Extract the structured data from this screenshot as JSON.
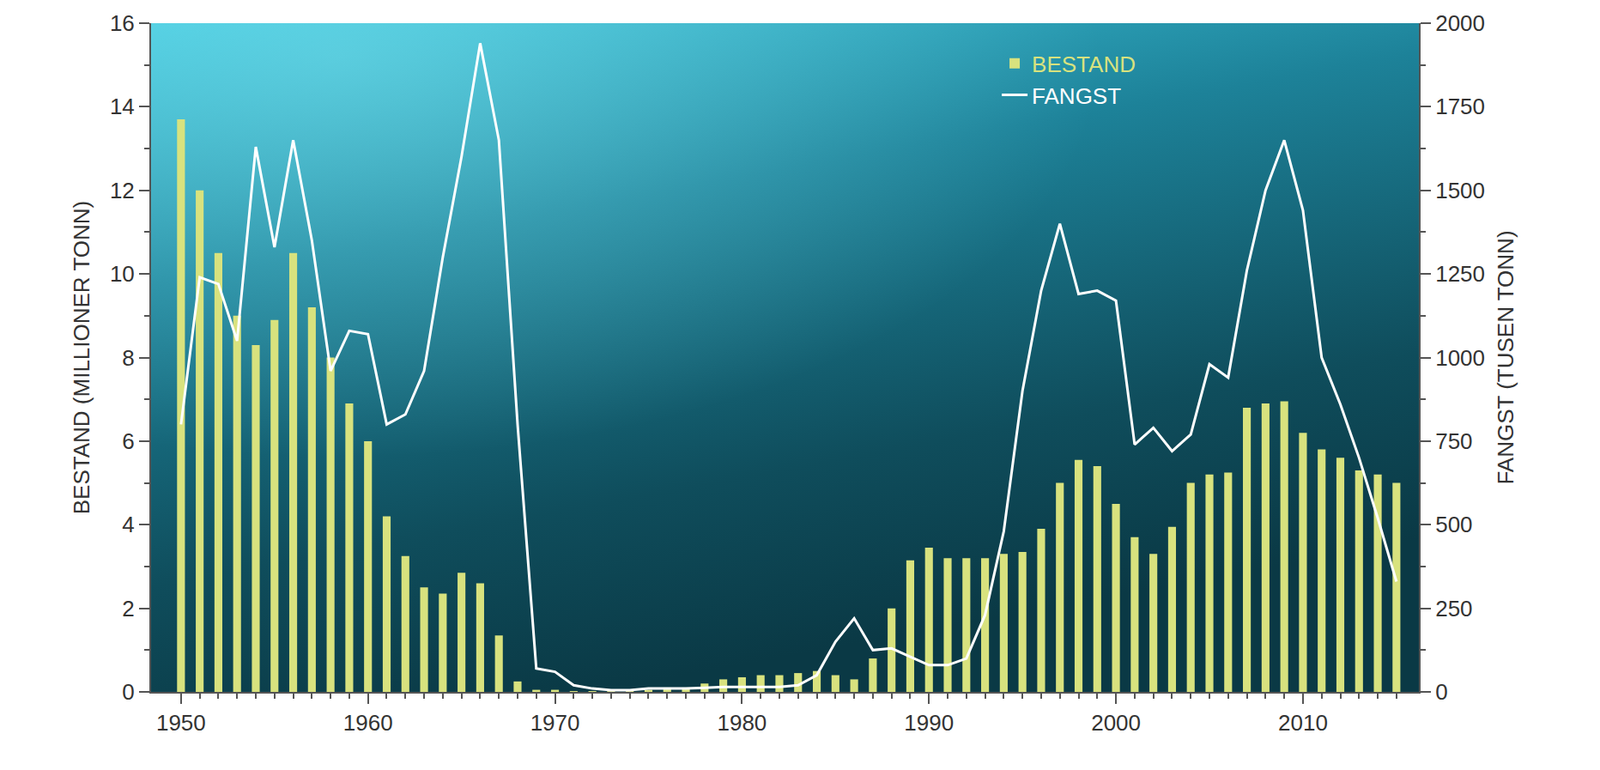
{
  "chart_data": {
    "type": "bar",
    "x": [
      1950,
      1951,
      1952,
      1953,
      1954,
      1955,
      1956,
      1957,
      1958,
      1959,
      1960,
      1961,
      1962,
      1963,
      1964,
      1965,
      1966,
      1967,
      1968,
      1969,
      1970,
      1971,
      1972,
      1973,
      1974,
      1975,
      1976,
      1977,
      1978,
      1979,
      1980,
      1981,
      1982,
      1983,
      1984,
      1985,
      1986,
      1987,
      1988,
      1989,
      1990,
      1991,
      1992,
      1993,
      1994,
      1995,
      1996,
      1997,
      1998,
      1999,
      2000,
      2001,
      2002,
      2003,
      2004,
      2005,
      2006,
      2007,
      2008,
      2009,
      2010,
      2011,
      2012,
      2013,
      2014,
      2015
    ],
    "series": [
      {
        "name": "BESTAND",
        "type": "bar",
        "color": "#d8e27e",
        "axis": "y",
        "values": [
          13.7,
          12.0,
          10.5,
          9.0,
          8.3,
          8.9,
          10.5,
          9.2,
          8.0,
          6.9,
          6.0,
          4.2,
          3.25,
          2.5,
          2.35,
          2.85,
          2.6,
          1.35,
          0.25,
          0.05,
          0.05,
          0.02,
          0.02,
          0.02,
          0.03,
          0.05,
          0.08,
          0.1,
          0.2,
          0.3,
          0.35,
          0.4,
          0.4,
          0.45,
          0.5,
          0.4,
          0.3,
          0.8,
          2.0,
          3.15,
          3.45,
          3.2,
          3.2,
          3.2,
          3.3,
          3.35,
          3.9,
          5.0,
          5.55,
          5.4,
          4.5,
          3.7,
          3.3,
          3.95,
          5.0,
          5.2,
          5.25,
          6.8,
          6.9,
          6.95,
          6.2,
          5.8,
          5.6,
          5.3,
          5.2,
          5.0
        ]
      },
      {
        "name": "FANGST",
        "type": "line",
        "color": "#ffffff",
        "axis": "y2",
        "values": [
          800,
          1240,
          1220,
          1050,
          1630,
          1330,
          1650,
          1350,
          960,
          1080,
          1070,
          800,
          830,
          960,
          1300,
          1600,
          1940,
          1650,
          800,
          70,
          60,
          20,
          10,
          5,
          5,
          10,
          10,
          10,
          12,
          15,
          15,
          15,
          15,
          20,
          50,
          150,
          220,
          125,
          130,
          105,
          80,
          80,
          100,
          230,
          480,
          900,
          1200,
          1400,
          1190,
          1200,
          1170,
          740,
          790,
          720,
          770,
          980,
          940,
          1260,
          1500,
          1650,
          1440,
          1000,
          860,
          700,
          520,
          330
        ]
      }
    ],
    "y_label": "BESTAND (MILLIONER TONN)",
    "y2_label": "FANGST (TUSEN TONN)",
    "xlim": [
      1948.4,
      2016.2
    ],
    "xticks": [
      1950,
      1960,
      1970,
      1980,
      1990,
      2000,
      2010
    ],
    "ylim": [
      0,
      16
    ],
    "yticks": [
      0,
      2,
      4,
      6,
      8,
      10,
      12,
      14,
      16
    ],
    "y2lim": [
      0,
      2000
    ],
    "y2ticks": [
      0,
      250,
      500,
      750,
      1000,
      1250,
      1500,
      1750,
      2000
    ],
    "grid": false,
    "legend": "top right"
  }
}
